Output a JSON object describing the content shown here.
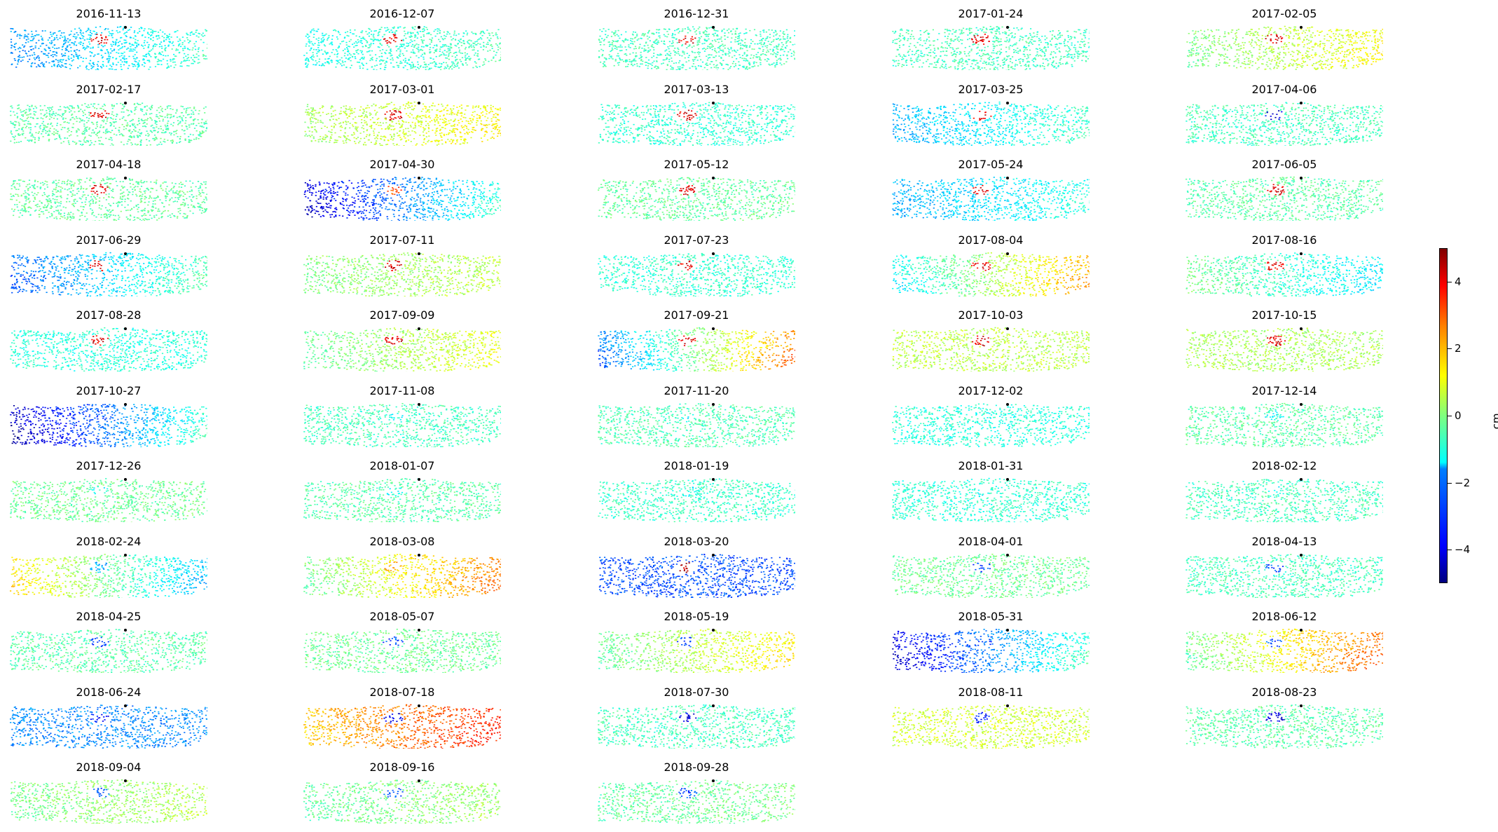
{
  "chart_data": {
    "type": "heatmap",
    "title": "",
    "grid": false,
    "colormap": "jet",
    "colorbar": {
      "label": "cm",
      "vmin": -5,
      "vmax": 5,
      "ticks": [
        -4,
        -2,
        0,
        2,
        4
      ],
      "tick_labels": [
        "−4",
        "−2",
        "0",
        "2",
        "4"
      ],
      "position": "right"
    },
    "panels": [
      {
        "date": "2016-11-13",
        "mean_disp_cm": -1.5,
        "gradient_cm": 1.0,
        "spot_cm": 4.0
      },
      {
        "date": "2016-12-07",
        "mean_disp_cm": -0.8,
        "gradient_cm": 0.3,
        "spot_cm": 4.0
      },
      {
        "date": "2016-12-31",
        "mean_disp_cm": -0.6,
        "gradient_cm": 0.0,
        "spot_cm": 4.0
      },
      {
        "date": "2017-01-24",
        "mean_disp_cm": -0.6,
        "gradient_cm": 0.0,
        "spot_cm": 4.0
      },
      {
        "date": "2017-02-05",
        "mean_disp_cm": 0.6,
        "gradient_cm": 0.8,
        "spot_cm": 4.0
      },
      {
        "date": "2017-02-17",
        "mean_disp_cm": -0.4,
        "gradient_cm": 0.0,
        "spot_cm": 4.0
      },
      {
        "date": "2017-03-01",
        "mean_disp_cm": 0.8,
        "gradient_cm": 0.6,
        "spot_cm": 4.0
      },
      {
        "date": "2017-03-13",
        "mean_disp_cm": -0.8,
        "gradient_cm": 0.0,
        "spot_cm": 4.0
      },
      {
        "date": "2017-03-25",
        "mean_disp_cm": -1.3,
        "gradient_cm": 0.8,
        "spot_cm": 4.0
      },
      {
        "date": "2017-04-06",
        "mean_disp_cm": -0.6,
        "gradient_cm": 0.0,
        "spot_cm": -4.0
      },
      {
        "date": "2017-04-18",
        "mean_disp_cm": -0.3,
        "gradient_cm": 0.0,
        "spot_cm": 4.0
      },
      {
        "date": "2017-04-30",
        "mean_disp_cm": -2.5,
        "gradient_cm": 2.0,
        "spot_cm": 3.0
      },
      {
        "date": "2017-05-12",
        "mean_disp_cm": -0.3,
        "gradient_cm": 0.0,
        "spot_cm": 4.0
      },
      {
        "date": "2017-05-24",
        "mean_disp_cm": -1.5,
        "gradient_cm": 0.6,
        "spot_cm": 4.0
      },
      {
        "date": "2017-06-05",
        "mean_disp_cm": -0.4,
        "gradient_cm": 0.0,
        "spot_cm": 4.0
      },
      {
        "date": "2017-06-29",
        "mean_disp_cm": -1.6,
        "gradient_cm": 1.4,
        "spot_cm": 4.0
      },
      {
        "date": "2017-07-11",
        "mean_disp_cm": 0.3,
        "gradient_cm": 0.4,
        "spot_cm": 4.0
      },
      {
        "date": "2017-07-23",
        "mean_disp_cm": -0.8,
        "gradient_cm": 0.0,
        "spot_cm": 4.0
      },
      {
        "date": "2017-08-04",
        "mean_disp_cm": 0.4,
        "gradient_cm": 2.0,
        "spot_cm": 4.0
      },
      {
        "date": "2017-08-16",
        "mean_disp_cm": -0.8,
        "gradient_cm": -0.8,
        "spot_cm": 4.0
      },
      {
        "date": "2017-08-28",
        "mean_disp_cm": -0.9,
        "gradient_cm": 0.0,
        "spot_cm": 4.0
      },
      {
        "date": "2017-09-09",
        "mean_disp_cm": 0.4,
        "gradient_cm": 0.8,
        "spot_cm": 4.0
      },
      {
        "date": "2017-09-21",
        "mean_disp_cm": 0.0,
        "gradient_cm": 3.0,
        "spot_cm": 4.0
      },
      {
        "date": "2017-10-03",
        "mean_disp_cm": 0.6,
        "gradient_cm": 0.0,
        "spot_cm": 4.0
      },
      {
        "date": "2017-10-15",
        "mean_disp_cm": 0.4,
        "gradient_cm": 0.0,
        "spot_cm": 4.0
      },
      {
        "date": "2017-10-27",
        "mean_disp_cm": -2.6,
        "gradient_cm": 2.2,
        "spot_cm": -3.0
      },
      {
        "date": "2017-11-08",
        "mean_disp_cm": -0.6,
        "gradient_cm": 0.0,
        "spot_cm": -1.0
      },
      {
        "date": "2017-11-20",
        "mean_disp_cm": -0.5,
        "gradient_cm": 0.0,
        "spot_cm": -1.0
      },
      {
        "date": "2017-12-02",
        "mean_disp_cm": -0.9,
        "gradient_cm": 0.0,
        "spot_cm": -1.0
      },
      {
        "date": "2017-12-14",
        "mean_disp_cm": -0.4,
        "gradient_cm": 0.0,
        "spot_cm": -1.0
      },
      {
        "date": "2017-12-26",
        "mean_disp_cm": -0.2,
        "gradient_cm": 0.0,
        "spot_cm": -1.0
      },
      {
        "date": "2018-01-07",
        "mean_disp_cm": -0.4,
        "gradient_cm": 0.0,
        "spot_cm": -1.0
      },
      {
        "date": "2018-01-19",
        "mean_disp_cm": -0.7,
        "gradient_cm": 0.0,
        "spot_cm": -1.0
      },
      {
        "date": "2018-01-31",
        "mean_disp_cm": -0.8,
        "gradient_cm": 0.0,
        "spot_cm": -1.0
      },
      {
        "date": "2018-02-12",
        "mean_disp_cm": -0.6,
        "gradient_cm": 0.0,
        "spot_cm": -1.0
      },
      {
        "date": "2018-02-24",
        "mean_disp_cm": -0.2,
        "gradient_cm": -2.0,
        "spot_cm": -2.0
      },
      {
        "date": "2018-03-08",
        "mean_disp_cm": 1.2,
        "gradient_cm": 1.6,
        "spot_cm": 2.0
      },
      {
        "date": "2018-03-20",
        "mean_disp_cm": -3.0,
        "gradient_cm": 0.0,
        "spot_cm": 4.5
      },
      {
        "date": "2018-04-01",
        "mean_disp_cm": -0.2,
        "gradient_cm": 0.0,
        "spot_cm": -3.0
      },
      {
        "date": "2018-04-13",
        "mean_disp_cm": -0.6,
        "gradient_cm": 0.0,
        "spot_cm": -3.0
      },
      {
        "date": "2018-04-25",
        "mean_disp_cm": -0.4,
        "gradient_cm": 0.0,
        "spot_cm": -3.0
      },
      {
        "date": "2018-05-07",
        "mean_disp_cm": -0.2,
        "gradient_cm": 0.0,
        "spot_cm": -3.0
      },
      {
        "date": "2018-05-19",
        "mean_disp_cm": 0.6,
        "gradient_cm": 1.0,
        "spot_cm": -3.0
      },
      {
        "date": "2018-05-31",
        "mean_disp_cm": -2.4,
        "gradient_cm": 2.0,
        "spot_cm": -3.0
      },
      {
        "date": "2018-06-12",
        "mean_disp_cm": 1.3,
        "gradient_cm": 1.8,
        "spot_cm": -3.0
      },
      {
        "date": "2018-06-24",
        "mean_disp_cm": -2.4,
        "gradient_cm": 0.0,
        "spot_cm": -3.5
      },
      {
        "date": "2018-07-18",
        "mean_disp_cm": 2.6,
        "gradient_cm": 1.0,
        "spot_cm": -4.0
      },
      {
        "date": "2018-07-30",
        "mean_disp_cm": -0.6,
        "gradient_cm": 0.0,
        "spot_cm": -4.0
      },
      {
        "date": "2018-08-11",
        "mean_disp_cm": 0.8,
        "gradient_cm": 0.0,
        "spot_cm": -3.5
      },
      {
        "date": "2018-08-23",
        "mean_disp_cm": -0.4,
        "gradient_cm": 0.0,
        "spot_cm": -4.0
      },
      {
        "date": "2018-09-04",
        "mean_disp_cm": 0.2,
        "gradient_cm": 0.4,
        "spot_cm": -3.0
      },
      {
        "date": "2018-09-16",
        "mean_disp_cm": 0.0,
        "gradient_cm": 0.4,
        "spot_cm": -3.0
      },
      {
        "date": "2018-09-28",
        "mean_disp_cm": -0.2,
        "gradient_cm": 0.2,
        "spot_cm": -3.0
      }
    ]
  }
}
